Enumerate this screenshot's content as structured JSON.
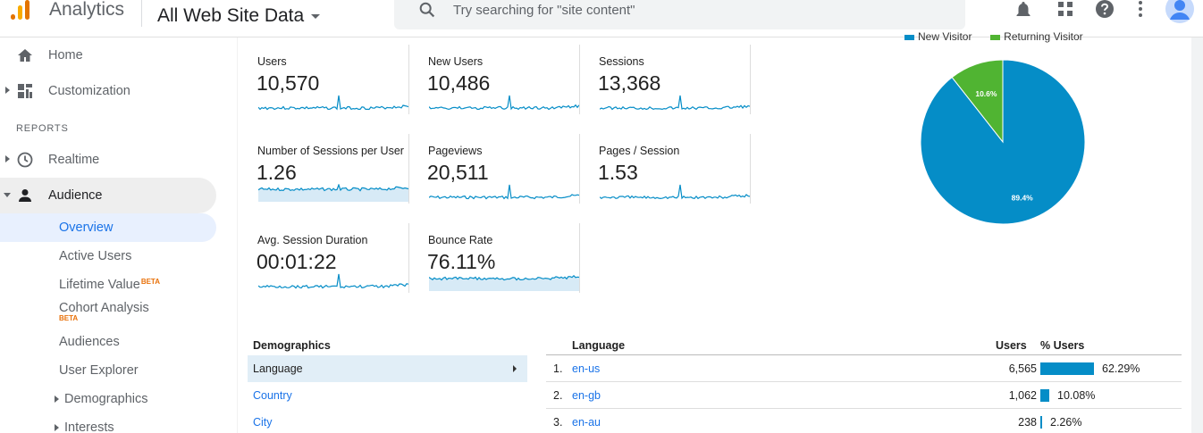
{
  "header": {
    "app_name": "Analytics",
    "property": "All Web Site Data",
    "search_placeholder": "Try searching for \"site content\""
  },
  "sidebar": {
    "home": "Home",
    "customization": "Customization",
    "reports_label": "REPORTS",
    "realtime": "Realtime",
    "audience": "Audience",
    "sub_items": {
      "overview": "Overview",
      "active_users": "Active Users",
      "lifetime_value": "Lifetime Value",
      "cohort_analysis": "Cohort Analysis",
      "audiences": "Audiences",
      "user_explorer": "User Explorer",
      "demographics": "Demographics",
      "interests": "Interests"
    },
    "beta": "BETA"
  },
  "metrics": [
    {
      "label": "Users",
      "value": "10,570"
    },
    {
      "label": "New Users",
      "value": "10,486"
    },
    {
      "label": "Sessions",
      "value": "13,368"
    },
    {
      "label": "Number of Sessions per User",
      "value": "1.26"
    },
    {
      "label": "Pageviews",
      "value": "20,511"
    },
    {
      "label": "Pages / Session",
      "value": "1.53"
    },
    {
      "label": "Avg. Session Duration",
      "value": "00:01:22"
    },
    {
      "label": "Bounce Rate",
      "value": "76.11%"
    }
  ],
  "pie": {
    "legend": [
      {
        "label": "New Visitor",
        "color": "#058dc7"
      },
      {
        "label": "Returning Visitor",
        "color": "#50b432"
      }
    ],
    "slices": [
      {
        "label": "New Visitor",
        "value": 89.4,
        "text": "89.4%",
        "color": "#058dc7"
      },
      {
        "label": "Returning Visitor",
        "value": 10.6,
        "text": "10.6%",
        "color": "#50b432"
      }
    ]
  },
  "demographics": {
    "title": "Demographics",
    "items": [
      "Language",
      "Country",
      "City"
    ]
  },
  "language_table": {
    "headers": {
      "language": "Language",
      "users": "Users",
      "pct_users": "% Users"
    },
    "rows": [
      {
        "num": "1.",
        "language": "en-us",
        "users": "6,565",
        "pct": "62.29%",
        "fraction": 0.6229
      },
      {
        "num": "2.",
        "language": "en-gb",
        "users": "1,062",
        "pct": "10.08%",
        "fraction": 0.1008
      },
      {
        "num": "3.",
        "language": "en-au",
        "users": "238",
        "pct": "2.26%",
        "fraction": 0.0226
      }
    ]
  },
  "colors": {
    "accent": "#1a73e8",
    "chart_blue": "#058dc7",
    "chart_green": "#50b432",
    "logo_orange": "#f9ab00",
    "logo_dark": "#e37400"
  }
}
